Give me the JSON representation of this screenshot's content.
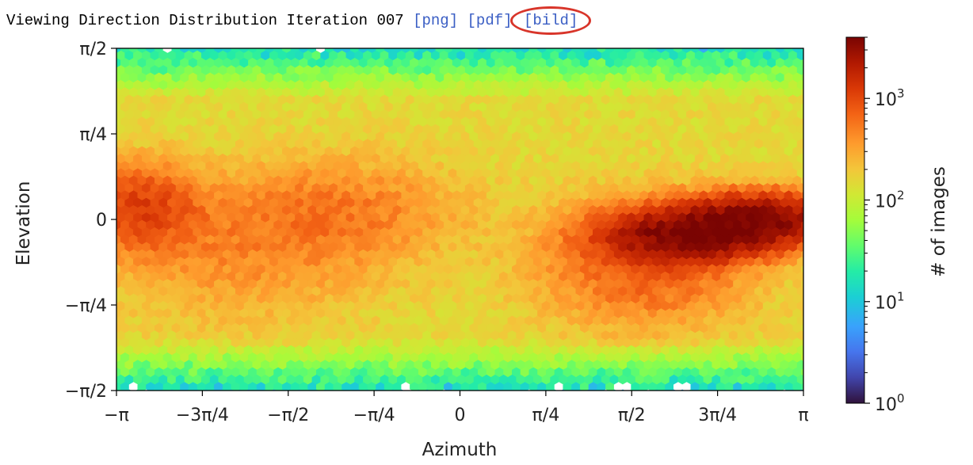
{
  "header": {
    "title": "Viewing Direction Distribution Iteration 007",
    "links": [
      "[png]",
      "[pdf]",
      "[bild]"
    ],
    "highlighted_link_color": "#d8352a"
  },
  "chart_data": {
    "type": "heatmap",
    "subtype": "hexbin",
    "title": "",
    "xlabel": "Azimuth",
    "ylabel": "Elevation",
    "xlim": [
      -3.14159,
      3.14159
    ],
    "ylim": [
      -1.5708,
      1.5708
    ],
    "x_ticks": [
      "−π",
      "−3π/4",
      "−π/2",
      "−π/4",
      "0",
      "π/4",
      "π/2",
      "3π/4",
      "π"
    ],
    "y_ticks": [
      "−π/2",
      "−π/4",
      "0",
      "π/4",
      "π/2"
    ],
    "colormap": "turbo",
    "colorbar": {
      "label": "# of images",
      "scale": "log",
      "range": [
        1,
        4000
      ],
      "ticks": [
        {
          "value": 1,
          "base": "10",
          "exp": "0"
        },
        {
          "value": 10,
          "base": "10",
          "exp": "1"
        },
        {
          "value": 100,
          "base": "10",
          "exp": "2"
        },
        {
          "value": 1000,
          "base": "10",
          "exp": "3"
        }
      ]
    },
    "background_count": 150,
    "hotspots": [
      {
        "x": 2.1,
        "y": -0.15,
        "sx": 0.45,
        "sy": 0.14,
        "peak": 3500
      },
      {
        "x": 2.75,
        "y": 0.0,
        "sx": 0.45,
        "sy": 0.14,
        "peak": 3000
      },
      {
        "x": 1.7,
        "y": -0.4,
        "sx": 0.6,
        "sy": 0.35,
        "peak": 600
      },
      {
        "x": -2.95,
        "y": 0.1,
        "sx": 0.35,
        "sy": 0.25,
        "peak": 900
      },
      {
        "x": -1.1,
        "y": 0.08,
        "sx": 0.7,
        "sy": 0.3,
        "peak": 330
      },
      {
        "x": -2.0,
        "y": -0.3,
        "sx": 0.8,
        "sy": 0.4,
        "peak": 260
      }
    ],
    "pole_count": 8
  }
}
